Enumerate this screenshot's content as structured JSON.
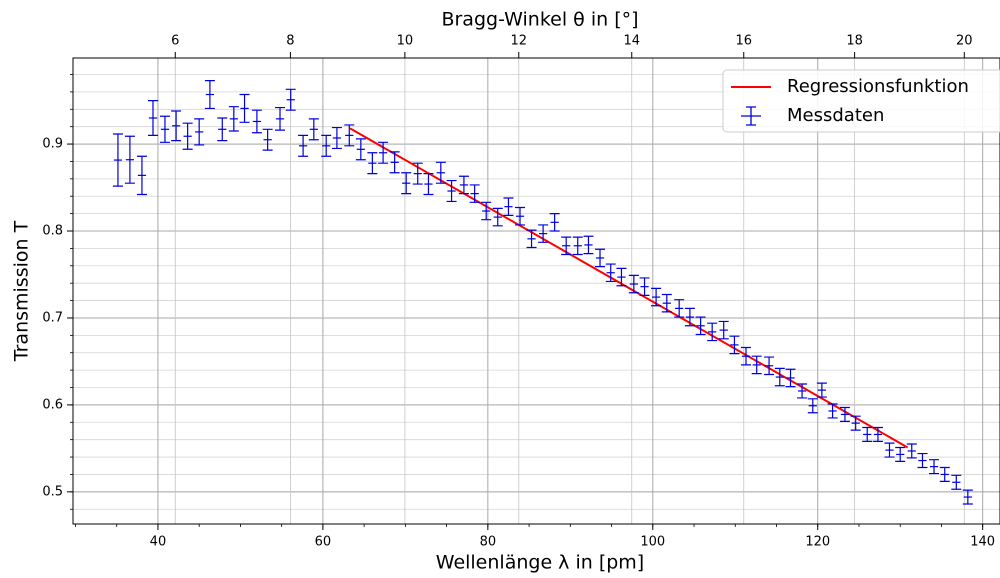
{
  "chart_data": {
    "type": "errorbar",
    "xlabel": "Wellenlänge λ in [pm]",
    "ylabel": "Transmission T",
    "x2label": "Bragg-Winkel θ in [°]",
    "xlim": [
      29.7,
      142.1
    ],
    "ylim": [
      0.463,
      0.999
    ],
    "xticks": [
      40,
      60,
      80,
      100,
      120,
      140
    ],
    "yticks": [
      0.5,
      0.6,
      0.7,
      0.8,
      0.9
    ],
    "x2ticks": [
      {
        "value": 42.1,
        "label": "6"
      },
      {
        "value": 56.06,
        "label": "8"
      },
      {
        "value": 69.94,
        "label": "10"
      },
      {
        "value": 83.75,
        "label": "12"
      },
      {
        "value": 97.45,
        "label": "14"
      },
      {
        "value": 111.03,
        "label": "16"
      },
      {
        "value": 124.47,
        "label": "18"
      },
      {
        "value": 137.77,
        "label": "20"
      }
    ],
    "grid": true,
    "minor_grid": true,
    "legend": "upper right",
    "series": [
      {
        "name": "Regressionsfunktion",
        "type": "line",
        "color": "#ff0000",
        "x": [
          63.3,
          130.9
        ],
        "values": [
          0.918,
          0.551
        ]
      },
      {
        "name": "Messdaten",
        "type": "errorbar",
        "color": "#0000dd",
        "xerr": 0.5,
        "x": [
          35.15,
          36.6,
          38.06,
          39.4,
          40.85,
          42.2,
          43.6,
          45.0,
          46.3,
          47.8,
          49.2,
          50.5,
          52.0,
          53.3,
          54.8,
          56.1,
          57.6,
          58.9,
          60.4,
          61.7,
          63.2,
          64.6,
          66.0,
          67.3,
          68.7,
          70.1,
          71.5,
          72.8,
          74.3,
          75.6,
          77.1,
          78.4,
          79.8,
          81.2,
          82.5,
          83.9,
          85.3,
          86.7,
          88.1,
          89.5,
          90.9,
          92.2,
          93.6,
          94.9,
          96.2,
          97.7,
          99.0,
          100.4,
          101.7,
          103.2,
          104.5,
          105.8,
          107.2,
          108.6,
          109.9,
          111.3,
          112.6,
          114.1,
          115.4,
          116.7,
          118.1,
          119.4,
          120.5,
          121.8,
          123.3,
          124.6,
          126.0,
          127.3,
          128.7,
          130.0,
          131.4,
          132.7,
          134.1,
          135.4,
          136.8,
          138.2
        ],
        "values": [
          0.8816,
          0.882,
          0.864,
          0.93,
          0.917,
          0.921,
          0.909,
          0.914,
          0.957,
          0.917,
          0.929,
          0.941,
          0.926,
          0.905,
          0.929,
          0.951,
          0.898,
          0.917,
          0.898,
          0.907,
          0.91,
          0.894,
          0.878,
          0.89,
          0.879,
          0.855,
          0.866,
          0.854,
          0.867,
          0.846,
          0.853,
          0.843,
          0.823,
          0.816,
          0.828,
          0.817,
          0.791,
          0.797,
          0.81,
          0.783,
          0.783,
          0.784,
          0.769,
          0.752,
          0.747,
          0.739,
          0.736,
          0.724,
          0.717,
          0.711,
          0.701,
          0.691,
          0.684,
          0.686,
          0.669,
          0.656,
          0.646,
          0.645,
          0.632,
          0.631,
          0.616,
          0.599,
          0.617,
          0.593,
          0.589,
          0.579,
          0.566,
          0.566,
          0.548,
          0.543,
          0.547,
          0.536,
          0.529,
          0.52,
          0.511,
          0.494
        ],
        "yerr": [
          0.03,
          0.027,
          0.022,
          0.02,
          0.015,
          0.017,
          0.015,
          0.015,
          0.016,
          0.013,
          0.014,
          0.016,
          0.013,
          0.012,
          0.013,
          0.012,
          0.012,
          0.012,
          0.012,
          0.012,
          0.012,
          0.012,
          0.012,
          0.012,
          0.012,
          0.012,
          0.012,
          0.012,
          0.012,
          0.012,
          0.01,
          0.01,
          0.01,
          0.01,
          0.01,
          0.01,
          0.01,
          0.01,
          0.01,
          0.01,
          0.01,
          0.01,
          0.01,
          0.01,
          0.01,
          0.01,
          0.01,
          0.01,
          0.01,
          0.01,
          0.01,
          0.01,
          0.01,
          0.01,
          0.01,
          0.01,
          0.01,
          0.01,
          0.01,
          0.01,
          0.008,
          0.008,
          0.008,
          0.008,
          0.008,
          0.008,
          0.008,
          0.008,
          0.008,
          0.008,
          0.008,
          0.008,
          0.008,
          0.008,
          0.008,
          0.008
        ]
      }
    ]
  }
}
